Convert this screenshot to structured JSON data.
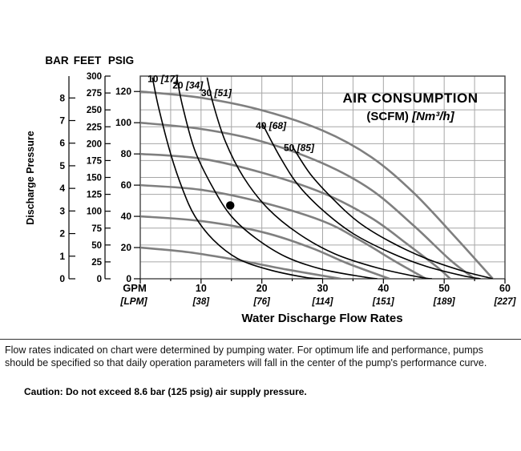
{
  "chart_data": {
    "type": "line",
    "title": "AIR CONSUMPTION",
    "subtitle_bold": "(SCFM)",
    "subtitle_italic": "[Nm³/h]",
    "xlabel": "Water Discharge Flow Rates",
    "ylabel": "Discharge Pressure",
    "colors": {
      "grid": "#a6a6a6",
      "plot_border": "#444444",
      "pressure_curve": "#7f7f7f",
      "air_curve": "#000000",
      "dot": "#000000"
    },
    "x_axis": {
      "primary_label": "GPM",
      "secondary_label": "[LPM]",
      "gpm_ticks": [
        10,
        20,
        30,
        40,
        50,
        60
      ],
      "lpm_ticks": [
        "[38]",
        "[76]",
        "[114]",
        "[151]",
        "[189]",
        "[227]"
      ],
      "range_gpm": [
        0,
        60
      ],
      "minor_step_gpm": 5
    },
    "y_axes": {
      "headers": [
        "BAR",
        "FEET",
        "PSIG"
      ],
      "bar": {
        "ticks": [
          0,
          1,
          2,
          3,
          4,
          5,
          6,
          7,
          8
        ],
        "feet_per_unit": 33.455
      },
      "feet": {
        "ticks": [
          0,
          25,
          50,
          75,
          100,
          125,
          150,
          175,
          200,
          225,
          250,
          275,
          300
        ],
        "range": [
          0,
          300
        ]
      },
      "psig": {
        "ticks": [
          0,
          20,
          40,
          60,
          80,
          100,
          120
        ],
        "feet_per_unit": 2.31
      }
    },
    "pressure_curves_psig": [
      {
        "inlet_psig": 120,
        "points": [
          [
            0,
            120
          ],
          [
            10,
            116
          ],
          [
            20,
            108
          ],
          [
            30,
            95
          ],
          [
            38,
            78
          ],
          [
            45,
            55
          ],
          [
            52,
            26
          ],
          [
            58,
            0
          ]
        ]
      },
      {
        "inlet_psig": 100,
        "points": [
          [
            0,
            100
          ],
          [
            10,
            96
          ],
          [
            20,
            88
          ],
          [
            30,
            74
          ],
          [
            38,
            57
          ],
          [
            45,
            34
          ],
          [
            51,
            12
          ],
          [
            55,
            0
          ]
        ]
      },
      {
        "inlet_psig": 80,
        "points": [
          [
            0,
            80
          ],
          [
            10,
            77
          ],
          [
            20,
            68
          ],
          [
            30,
            55
          ],
          [
            38,
            39
          ],
          [
            44,
            22
          ],
          [
            49,
            7
          ],
          [
            51,
            0
          ]
        ]
      },
      {
        "inlet_psig": 60,
        "points": [
          [
            0,
            60
          ],
          [
            10,
            57
          ],
          [
            20,
            49
          ],
          [
            30,
            37
          ],
          [
            36,
            25
          ],
          [
            42,
            11
          ],
          [
            47,
            0
          ]
        ]
      },
      {
        "inlet_psig": 40,
        "points": [
          [
            0,
            40
          ],
          [
            10,
            37
          ],
          [
            20,
            30
          ],
          [
            28,
            20
          ],
          [
            34,
            10
          ],
          [
            41,
            0
          ]
        ]
      },
      {
        "inlet_psig": 20,
        "points": [
          [
            0,
            20
          ],
          [
            8,
            17
          ],
          [
            16,
            12
          ],
          [
            24,
            6
          ],
          [
            33,
            0
          ]
        ]
      }
    ],
    "air_curves_scfm": [
      {
        "scfm": 10,
        "nm3h": 17,
        "label_num": "10",
        "label_bracket": "[17]",
        "label_pos": [
          1.2,
          126
        ],
        "points": [
          [
            2,
            129
          ],
          [
            3,
            110
          ],
          [
            5,
            80
          ],
          [
            7,
            57
          ],
          [
            9,
            40
          ],
          [
            12,
            25
          ],
          [
            16,
            13
          ],
          [
            21,
            6
          ],
          [
            27,
            1
          ],
          [
            30,
            0
          ]
        ]
      },
      {
        "scfm": 20,
        "nm3h": 34,
        "label_num": "20",
        "label_bracket": "[34]",
        "label_pos": [
          5.3,
          122
        ],
        "points": [
          [
            6,
            129
          ],
          [
            7,
            110
          ],
          [
            9,
            82
          ],
          [
            12,
            58
          ],
          [
            15,
            40
          ],
          [
            19,
            26
          ],
          [
            24,
            14
          ],
          [
            30,
            6
          ],
          [
            37,
            1
          ],
          [
            39,
            0
          ]
        ]
      },
      {
        "scfm": 30,
        "nm3h": 51,
        "label_num": "30",
        "label_bracket": "[51]",
        "label_pos": [
          10.0,
          117
        ],
        "points": [
          [
            11,
            129
          ],
          [
            12,
            112
          ],
          [
            14,
            88
          ],
          [
            17,
            65
          ],
          [
            21,
            45
          ],
          [
            26,
            29
          ],
          [
            32,
            16
          ],
          [
            39,
            7
          ],
          [
            46,
            1
          ],
          [
            48,
            0
          ]
        ]
      },
      {
        "scfm": 40,
        "nm3h": 68,
        "label_num": "40",
        "label_bracket": "[68]",
        "label_pos": [
          19.0,
          96
        ],
        "points": [
          [
            20,
            100
          ],
          [
            23,
            78
          ],
          [
            26,
            60
          ],
          [
            30,
            44
          ],
          [
            35,
            29
          ],
          [
            41,
            17
          ],
          [
            47,
            8
          ],
          [
            53,
            2
          ],
          [
            56,
            0
          ]
        ]
      },
      {
        "scfm": 50,
        "nm3h": 85,
        "label_num": "50",
        "label_bracket": "[85]",
        "label_pos": [
          23.6,
          82
        ],
        "points": [
          [
            25,
            85
          ],
          [
            28,
            67
          ],
          [
            32,
            50
          ],
          [
            36,
            36
          ],
          [
            41,
            24
          ],
          [
            47,
            13
          ],
          [
            53,
            5
          ],
          [
            57,
            1
          ],
          [
            58,
            0
          ]
        ]
      }
    ],
    "operating_point": {
      "gpm": 14.8,
      "psig": 47
    }
  },
  "footer": {
    "note_line1": "Flow rates indicated on chart were determined by pumping water. For optimum life and performance, pumps",
    "note_line2": "should be specified so that daily operation parameters will fall in the center of the pump's performance curve.",
    "caution": "Caution: Do not exceed 8.6 bar (125 psig) air supply pressure."
  }
}
